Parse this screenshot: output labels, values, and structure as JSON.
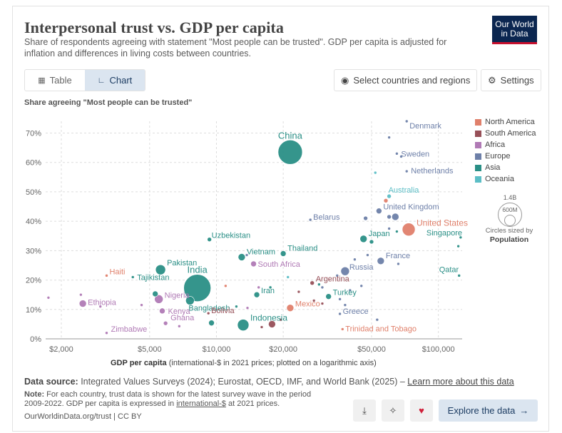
{
  "header": {
    "title": "Interpersonal trust vs. GDP per capita",
    "subtitle": "Share of respondents agreeing with statement \"Most people can be trusted\". GDP per capita is adjusted for inflation and differences in living costs between countries.",
    "logo_line1": "Our World",
    "logo_line2": "in Data"
  },
  "tabs": [
    {
      "label": "Table",
      "icon": "table-icon"
    },
    {
      "label": "Chart",
      "icon": "chart-icon"
    }
  ],
  "toolbar": {
    "select_label": "Select countries and regions",
    "settings_label": "Settings"
  },
  "legend": {
    "items": [
      {
        "label": "North America",
        "color": "#e0806b"
      },
      {
        "label": "South America",
        "color": "#975058"
      },
      {
        "label": "Africa",
        "color": "#b07ab5"
      },
      {
        "label": "Europe",
        "color": "#6d7fa8"
      },
      {
        "label": "Asia",
        "color": "#2a8f86"
      },
      {
        "label": "Oceania",
        "color": "#5cbec6"
      }
    ],
    "size_big": "1.4B",
    "size_small": "600M",
    "size_caption": "Circles sized by",
    "size_caption_bold": "Population"
  },
  "chart_data": {
    "type": "scatter",
    "title": "Interpersonal trust vs. GDP per capita",
    "ylabel": "Share agreeing \"Most people can be trusted\"",
    "xlabel_bold": "GDP per capita",
    "xlabel_rest": " (international-$ in 2021 prices; plotted on a logarithmic axis)",
    "xscale": "log",
    "xlim": [
      1700,
      128000
    ],
    "ylim": [
      0,
      74
    ],
    "xticks": [
      {
        "value": 2000,
        "label": "$2,000"
      },
      {
        "value": 5000,
        "label": "$5,000"
      },
      {
        "value": 10000,
        "label": "$10,000"
      },
      {
        "value": 20000,
        "label": "$20,000"
      },
      {
        "value": 50000,
        "label": "$50,000"
      },
      {
        "value": 100000,
        "label": "$100,000"
      }
    ],
    "yticks": [
      {
        "value": 0,
        "label": "0%"
      },
      {
        "value": 10,
        "label": "10%"
      },
      {
        "value": 20,
        "label": "20%"
      },
      {
        "value": 30,
        "label": "30%"
      },
      {
        "value": 40,
        "label": "40%"
      },
      {
        "value": 50,
        "label": "50%"
      },
      {
        "value": 60,
        "label": "60%"
      },
      {
        "value": 70,
        "label": "70%"
      }
    ],
    "grid": true,
    "points": [
      {
        "name": "China",
        "gdp": 21500,
        "trust": 63.5,
        "region": "Asia",
        "size": 17,
        "labeled": true
      },
      {
        "name": "India",
        "gdp": 8200,
        "trust": 17.3,
        "region": "Asia",
        "size": 19,
        "labeled": true
      },
      {
        "name": "Indonesia",
        "gdp": 13200,
        "trust": 4.7,
        "region": "Asia",
        "size": 8,
        "labeled": true
      },
      {
        "name": "Pakistan",
        "gdp": 5600,
        "trust": 23.5,
        "region": "Asia",
        "size": 7,
        "labeled": true
      },
      {
        "name": "Bangladesh",
        "gdp": 7600,
        "trust": 13,
        "region": "Asia",
        "size": 6,
        "labeled": true
      },
      {
        "name": "Vietnam",
        "gdp": 13000,
        "trust": 27.8,
        "region": "Asia",
        "size": 5,
        "labeled": true
      },
      {
        "name": "Uzbekistan",
        "gdp": 9300,
        "trust": 33.8,
        "region": "Asia",
        "size": 3,
        "labeled": true
      },
      {
        "name": "Tajikistan",
        "gdp": 4200,
        "trust": 21,
        "region": "Asia",
        "size": 2,
        "labeled": true
      },
      {
        "name": "Iran",
        "gdp": 15200,
        "trust": 15,
        "region": "Asia",
        "size": 4,
        "labeled": true
      },
      {
        "name": "Thailand",
        "gdp": 20000,
        "trust": 29,
        "region": "Asia",
        "size": 4,
        "labeled": true
      },
      {
        "name": "Japan",
        "gdp": 46000,
        "trust": 34,
        "region": "Asia",
        "size": 5,
        "labeled": true
      },
      {
        "name": "Turkey",
        "gdp": 32000,
        "trust": 14.4,
        "region": "Asia",
        "size": 4,
        "labeled": true
      },
      {
        "name": "Singapore",
        "gdp": 126000,
        "trust": 34.5,
        "region": "Asia",
        "size": 2,
        "labeled": true
      },
      {
        "name": "Qatar",
        "gdp": 124000,
        "trust": 21.5,
        "region": "Asia",
        "size": 2,
        "labeled": true
      },
      {
        "name": "",
        "gdp": 5300,
        "trust": 15.3,
        "region": "Asia",
        "size": 4,
        "labeled": false
      },
      {
        "name": "",
        "gdp": 9500,
        "trust": 5.4,
        "region": "Asia",
        "size": 4,
        "labeled": false
      },
      {
        "name": "",
        "gdp": 12300,
        "trust": 11,
        "region": "Asia",
        "size": 2,
        "labeled": false
      },
      {
        "name": "",
        "gdp": 50000,
        "trust": 33,
        "region": "Asia",
        "size": 3,
        "labeled": false
      },
      {
        "name": "",
        "gdp": 65000,
        "trust": 36.5,
        "region": "Asia",
        "size": 2,
        "labeled": false
      },
      {
        "name": "",
        "gdp": 29000,
        "trust": 18.5,
        "region": "Asia",
        "size": 2,
        "labeled": false
      },
      {
        "name": "",
        "gdp": 17500,
        "trust": 17.5,
        "region": "Asia",
        "size": 2,
        "labeled": false
      },
      {
        "name": "",
        "gdp": 123000,
        "trust": 31.5,
        "region": "Asia",
        "size": 2,
        "labeled": false
      },
      {
        "name": "Ethiopia",
        "gdp": 2500,
        "trust": 12,
        "region": "Africa",
        "size": 5,
        "labeled": true
      },
      {
        "name": "Nigeria",
        "gdp": 5500,
        "trust": 13.5,
        "region": "Africa",
        "size": 6,
        "labeled": true
      },
      {
        "name": "Kenya",
        "gdp": 5700,
        "trust": 9.5,
        "region": "Africa",
        "size": 4,
        "labeled": true
      },
      {
        "name": "Ghana",
        "gdp": 5900,
        "trust": 5.3,
        "region": "Africa",
        "size": 3,
        "labeled": true
      },
      {
        "name": "Zimbabwe",
        "gdp": 3200,
        "trust": 2,
        "region": "Africa",
        "size": 2,
        "labeled": true
      },
      {
        "name": "South Africa",
        "gdp": 14700,
        "trust": 25.5,
        "region": "Africa",
        "size": 4,
        "labeled": true
      },
      {
        "name": "",
        "gdp": 1750,
        "trust": 14,
        "region": "Africa",
        "size": 2,
        "labeled": false
      },
      {
        "name": "",
        "gdp": 2450,
        "trust": 15,
        "region": "Africa",
        "size": 2,
        "labeled": false
      },
      {
        "name": "",
        "gdp": 3000,
        "trust": 11,
        "region": "Africa",
        "size": 2,
        "labeled": false
      },
      {
        "name": "",
        "gdp": 4600,
        "trust": 11.5,
        "region": "Africa",
        "size": 2,
        "labeled": false
      },
      {
        "name": "",
        "gdp": 6800,
        "trust": 4.3,
        "region": "Africa",
        "size": 2,
        "labeled": false
      },
      {
        "name": "",
        "gdp": 15500,
        "trust": 17.5,
        "region": "Africa",
        "size": 2,
        "labeled": false
      },
      {
        "name": "",
        "gdp": 13800,
        "trust": 10.5,
        "region": "Africa",
        "size": 2,
        "labeled": false
      },
      {
        "name": "Haiti",
        "gdp": 3200,
        "trust": 21.5,
        "region": "North America",
        "size": 2,
        "labeled": true
      },
      {
        "name": "Mexico",
        "gdp": 21500,
        "trust": 10.5,
        "region": "North America",
        "size": 5,
        "labeled": true
      },
      {
        "name": "United States",
        "gdp": 73500,
        "trust": 37.2,
        "region": "North America",
        "size": 9,
        "labeled": true
      },
      {
        "name": "Trinidad and Tobago",
        "gdp": 37000,
        "trust": 3.3,
        "region": "North America",
        "size": 2,
        "labeled": true
      },
      {
        "name": "",
        "gdp": 58000,
        "trust": 47,
        "region": "North America",
        "size": 3,
        "labeled": false
      },
      {
        "name": "",
        "gdp": 11000,
        "trust": 18,
        "region": "North America",
        "size": 2,
        "labeled": false
      },
      {
        "name": "Bolivia",
        "gdp": 9200,
        "trust": 8.7,
        "region": "South America",
        "size": 2,
        "labeled": true
      },
      {
        "name": "Argentina",
        "gdp": 27000,
        "trust": 19,
        "region": "South America",
        "size": 3,
        "labeled": true
      },
      {
        "name": "",
        "gdp": 17800,
        "trust": 5,
        "region": "South America",
        "size": 5,
        "labeled": false
      },
      {
        "name": "",
        "gdp": 16000,
        "trust": 4,
        "region": "South America",
        "size": 2,
        "labeled": false
      },
      {
        "name": "",
        "gdp": 19500,
        "trust": 6.5,
        "region": "South America",
        "size": 2,
        "labeled": false
      },
      {
        "name": "",
        "gdp": 27500,
        "trust": 13,
        "region": "South America",
        "size": 2,
        "labeled": false
      },
      {
        "name": "",
        "gdp": 23500,
        "trust": 16,
        "region": "South America",
        "size": 2,
        "labeled": false
      },
      {
        "name": "",
        "gdp": 30000,
        "trust": 12,
        "region": "South America",
        "size": 2,
        "labeled": false
      },
      {
        "name": "Denmark",
        "gdp": 72000,
        "trust": 74,
        "region": "Europe",
        "size": 2,
        "labeled": true
      },
      {
        "name": "Sweden",
        "gdp": 65000,
        "trust": 63,
        "region": "Europe",
        "size": 2,
        "labeled": true
      },
      {
        "name": "Netherlands",
        "gdp": 72000,
        "trust": 57,
        "region": "Europe",
        "size": 2,
        "labeled": true
      },
      {
        "name": "United Kingdom",
        "gdp": 54000,
        "trust": 43.5,
        "region": "Europe",
        "size": 4,
        "labeled": true
      },
      {
        "name": "Belarus",
        "gdp": 26500,
        "trust": 40.5,
        "region": "Europe",
        "size": 2,
        "labeled": true
      },
      {
        "name": "Russia",
        "gdp": 38000,
        "trust": 23,
        "region": "Europe",
        "size": 6,
        "labeled": true
      },
      {
        "name": "France",
        "gdp": 55000,
        "trust": 26.5,
        "region": "Europe",
        "size": 5,
        "labeled": true
      },
      {
        "name": "Greece",
        "gdp": 36000,
        "trust": 8.5,
        "region": "Europe",
        "size": 2,
        "labeled": true
      },
      {
        "name": "",
        "gdp": 68000,
        "trust": 62,
        "region": "Europe",
        "size": 2,
        "labeled": false
      },
      {
        "name": "",
        "gdp": 60000,
        "trust": 68.5,
        "region": "Europe",
        "size": 2,
        "labeled": false
      },
      {
        "name": "",
        "gdp": 64000,
        "trust": 41.5,
        "region": "Europe",
        "size": 5,
        "labeled": false
      },
      {
        "name": "",
        "gdp": 47000,
        "trust": 41,
        "region": "Europe",
        "size": 3,
        "labeled": false
      },
      {
        "name": "",
        "gdp": 60000,
        "trust": 41.5,
        "region": "Europe",
        "size": 3,
        "labeled": false
      },
      {
        "name": "",
        "gdp": 60000,
        "trust": 37.5,
        "region": "Europe",
        "size": 2,
        "labeled": false
      },
      {
        "name": "",
        "gdp": 42000,
        "trust": 27,
        "region": "Europe",
        "size": 2,
        "labeled": false
      },
      {
        "name": "",
        "gdp": 48000,
        "trust": 28.5,
        "region": "Europe",
        "size": 2,
        "labeled": false
      },
      {
        "name": "",
        "gdp": 45000,
        "trust": 18,
        "region": "Europe",
        "size": 2,
        "labeled": false
      },
      {
        "name": "",
        "gdp": 40000,
        "trust": 16.5,
        "region": "Europe",
        "size": 2,
        "labeled": false
      },
      {
        "name": "",
        "gdp": 38000,
        "trust": 11.5,
        "region": "Europe",
        "size": 2,
        "labeled": false
      },
      {
        "name": "",
        "gdp": 53000,
        "trust": 6.5,
        "region": "Europe",
        "size": 2,
        "labeled": false
      },
      {
        "name": "",
        "gdp": 66000,
        "trust": 25.5,
        "region": "Europe",
        "size": 2,
        "labeled": false
      },
      {
        "name": "",
        "gdp": 35000,
        "trust": 21.5,
        "region": "Europe",
        "size": 2,
        "labeled": false
      },
      {
        "name": "",
        "gdp": 13700,
        "trust": 28.5,
        "region": "Europe",
        "size": 2,
        "labeled": false
      },
      {
        "name": "",
        "gdp": 30000,
        "trust": 17.5,
        "region": "Europe",
        "size": 2,
        "labeled": false
      },
      {
        "name": "",
        "gdp": 36000,
        "trust": 13.5,
        "region": "Europe",
        "size": 2,
        "labeled": false
      },
      {
        "name": "Australia",
        "gdp": 60000,
        "trust": 48.5,
        "region": "Oceania",
        "size": 3,
        "labeled": true
      },
      {
        "name": "",
        "gdp": 52000,
        "trust": 56.5,
        "region": "Oceania",
        "size": 2,
        "labeled": false
      },
      {
        "name": "",
        "gdp": 21000,
        "trust": 21,
        "region": "Oceania",
        "size": 2,
        "labeled": false
      }
    ]
  },
  "footer": {
    "source_label": "Data source:",
    "source_text": " Integrated Values Surveys (2024); Eurostat, OECD, IMF, and World Bank (2025) – ",
    "source_link": "Learn more about this data",
    "note_label": "Note:",
    "note_text_1": " For each country, trust data is shown for the latest survey wave in the period 2009-2022. GDP per capita is expressed in ",
    "note_link": "international-$",
    "note_text_2": " at 2021 prices.",
    "site_link": "OurWorldinData.org/trust | CC BY",
    "explore_label": "Explore the data",
    "download_icon": "download-icon",
    "share_icon": "share-icon",
    "heart_icon": "heart-icon"
  }
}
